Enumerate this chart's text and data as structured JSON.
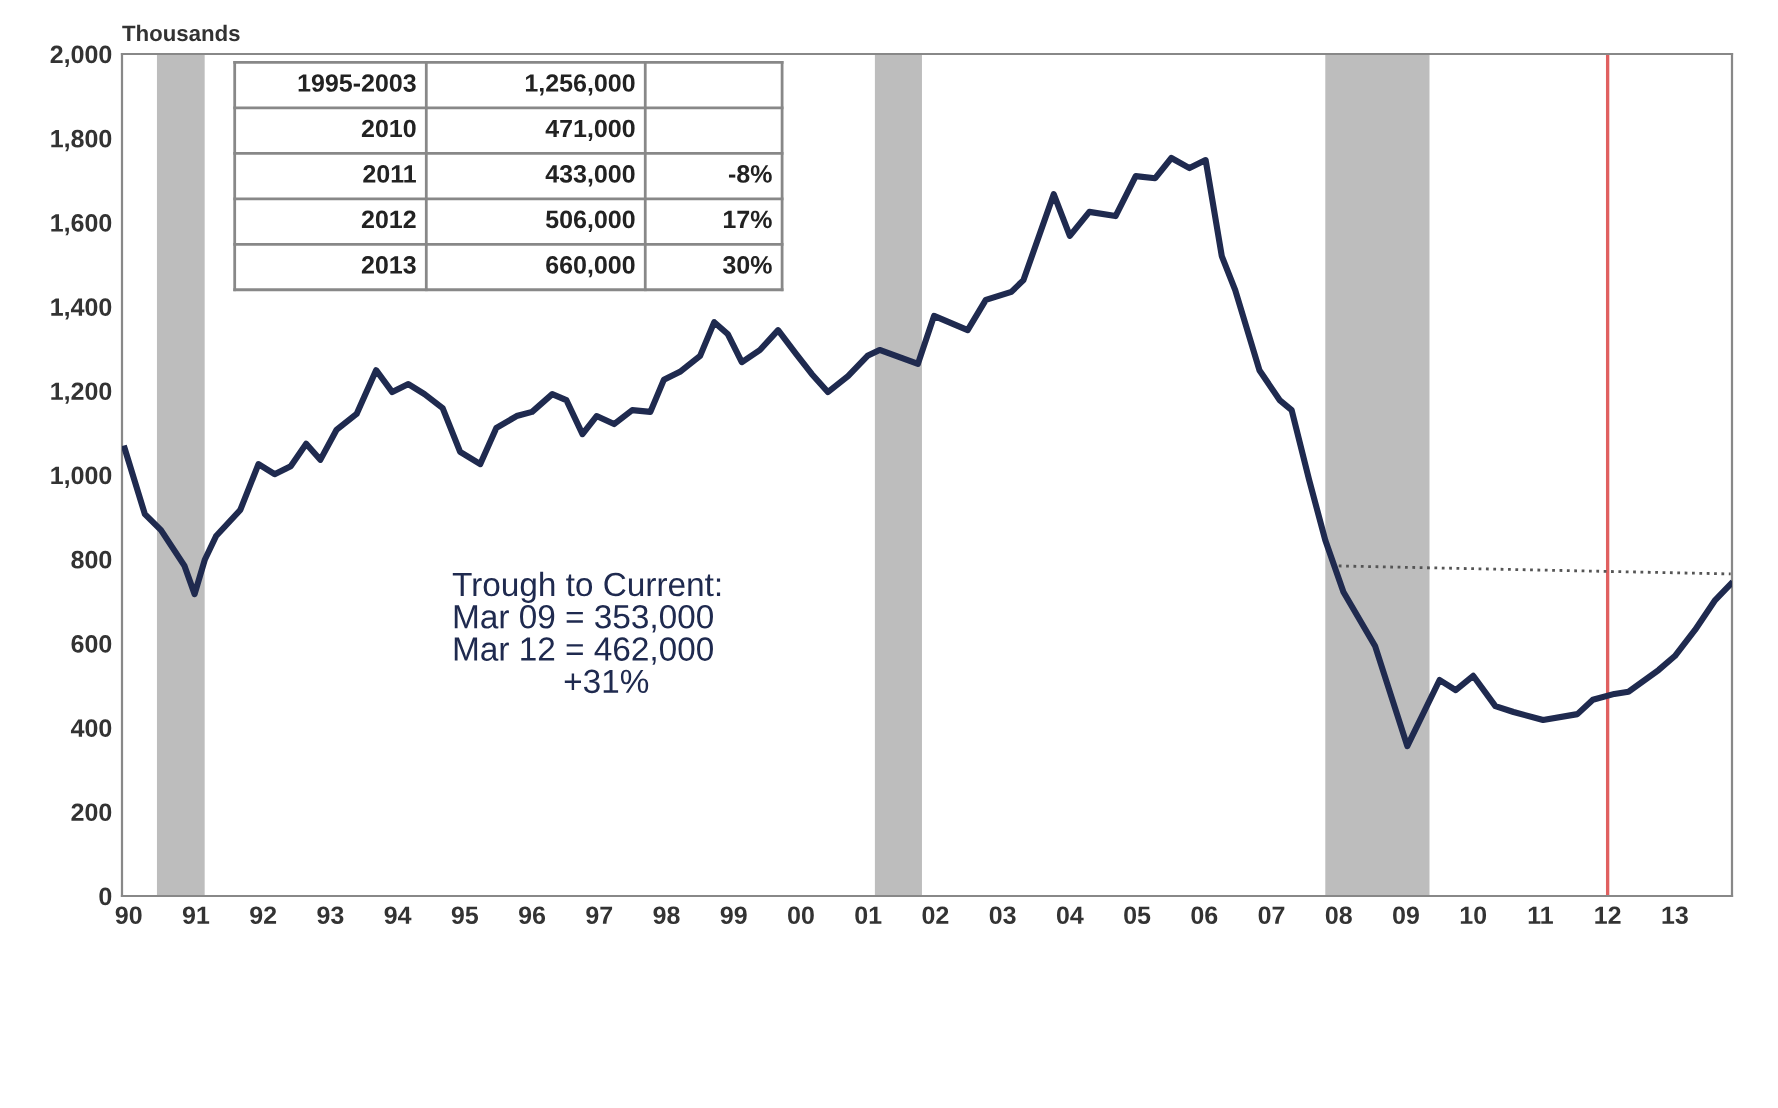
{
  "chart_data": {
    "type": "line",
    "ylabel": "Thousands",
    "xlim": [
      1989.9,
      2013.85
    ],
    "xticks": [
      {
        "value": 1990,
        "label": "90"
      },
      {
        "value": 1991,
        "label": "91"
      },
      {
        "value": 1992,
        "label": "92"
      },
      {
        "value": 1993,
        "label": "93"
      },
      {
        "value": 1994,
        "label": "94"
      },
      {
        "value": 1995,
        "label": "95"
      },
      {
        "value": 1996,
        "label": "96"
      },
      {
        "value": 1997,
        "label": "97"
      },
      {
        "value": 1998,
        "label": "98"
      },
      {
        "value": 1999,
        "label": "99"
      },
      {
        "value": 2000,
        "label": "00"
      },
      {
        "value": 2001,
        "label": "01"
      },
      {
        "value": 2002,
        "label": "02"
      },
      {
        "value": 2003,
        "label": "03"
      },
      {
        "value": 2004,
        "label": "04"
      },
      {
        "value": 2005,
        "label": "05"
      },
      {
        "value": 2006,
        "label": "06"
      },
      {
        "value": 2007,
        "label": "07"
      },
      {
        "value": 2008,
        "label": "08"
      },
      {
        "value": 2009,
        "label": "09"
      },
      {
        "value": 2010,
        "label": "10"
      },
      {
        "value": 2011,
        "label": "11"
      },
      {
        "value": 2012,
        "label": "12"
      },
      {
        "value": 2013,
        "label": "13"
      }
    ],
    "ylim": [
      0,
      2000
    ],
    "yticks": [
      {
        "value": 0,
        "label": "0"
      },
      {
        "value": 200,
        "label": "200"
      },
      {
        "value": 400,
        "label": "400"
      },
      {
        "value": 600,
        "label": "600"
      },
      {
        "value": 800,
        "label": "800"
      },
      {
        "value": 1000,
        "label": "1,000"
      },
      {
        "value": 1200,
        "label": "1,200"
      },
      {
        "value": 1400,
        "label": "1,400"
      },
      {
        "value": 1600,
        "label": "1,600"
      },
      {
        "value": 1800,
        "label": "1,800"
      },
      {
        "value": 2000,
        "label": "2,000"
      }
    ],
    "grid": false,
    "legend": false,
    "marker": "none",
    "series": [
      {
        "color": "#1f2a4f",
        "line_style": "solid",
        "x": [
          1989.94,
          1990.24,
          1990.48,
          1990.83,
          1990.98,
          1991.13,
          1991.3,
          1991.66,
          1991.93,
          1992.17,
          1992.41,
          1992.64,
          1992.85,
          1993.09,
          1993.39,
          1993.68,
          1993.92,
          1994.16,
          1994.4,
          1994.67,
          1994.93,
          1995.23,
          1995.47,
          1995.77,
          1996.0,
          1996.3,
          1996.51,
          1996.75,
          1996.96,
          1997.22,
          1997.49,
          1997.76,
          1997.96,
          1998.2,
          1998.5,
          1998.71,
          1998.91,
          1999.12,
          1999.39,
          1999.66,
          1999.93,
          2000.16,
          2000.4,
          2000.7,
          2000.99,
          2001.17,
          2001.74,
          2001.98,
          2002.48,
          2002.75,
          2003.13,
          2003.31,
          2003.76,
          2004.0,
          2004.29,
          2004.68,
          2004.98,
          2005.27,
          2005.51,
          2005.78,
          2006.02,
          2006.26,
          2006.46,
          2006.82,
          2007.12,
          2007.3,
          2007.56,
          2007.8,
          2008.07,
          2008.54,
          2009.02,
          2009.5,
          2009.74,
          2010.0,
          2010.33,
          2010.6,
          2011.04,
          2011.55,
          2011.78,
          2012.1,
          2012.31,
          2012.76,
          2013.0,
          2013.3,
          2013.6,
          2013.83
        ],
        "values": [
          1063,
          907,
          869,
          784,
          717,
          798,
          855,
          917,
          1026,
          1002,
          1021,
          1074,
          1036,
          1107,
          1145,
          1249,
          1197,
          1216,
          1192,
          1159,
          1055,
          1026,
          1112,
          1140,
          1150,
          1192,
          1178,
          1097,
          1140,
          1121,
          1154,
          1150,
          1226,
          1245,
          1283,
          1363,
          1335,
          1268,
          1297,
          1344,
          1287,
          1240,
          1197,
          1235,
          1283,
          1297,
          1264,
          1378,
          1344,
          1416,
          1435,
          1463,
          1667,
          1568,
          1625,
          1615,
          1710,
          1705,
          1753,
          1729,
          1748,
          1520,
          1439,
          1249,
          1178,
          1154,
          988,
          845,
          722,
          594,
          356,
          513,
          489,
          523,
          451,
          437,
          418,
          432,
          466,
          480,
          485,
          537,
          570,
          632,
          703,
          741
        ]
      },
      {
        "color": "#555555",
        "line_style": "dotted",
        "x": [
          2008.0,
          2013.83
        ],
        "values": [
          784,
          765
        ]
      }
    ],
    "bands": [
      {
        "axis": "x",
        "from": 1990.42,
        "to": 1991.13,
        "color": "#bdbdbd"
      },
      {
        "axis": "x",
        "from": 2001.1,
        "to": 2001.8,
        "color": "#bdbdbd"
      },
      {
        "axis": "x",
        "from": 2007.8,
        "to": 2009.35,
        "color": "#bdbdbd"
      }
    ],
    "ref_lines": [
      {
        "axis": "x",
        "value": 2012.0,
        "color": "#e06060",
        "line_style": "solid"
      }
    ],
    "annotations": [
      "1995-2003\t1,256,000\t",
      "2010\t471,000\t",
      "2011\t433,000\t-8%",
      "2012\t506,000\t17%",
      "2013\t660,000\t30%",
      "Trough to Current:\nMar 09 = 353,000\nMar 12 = 462,000\n            +31%"
    ]
  }
}
